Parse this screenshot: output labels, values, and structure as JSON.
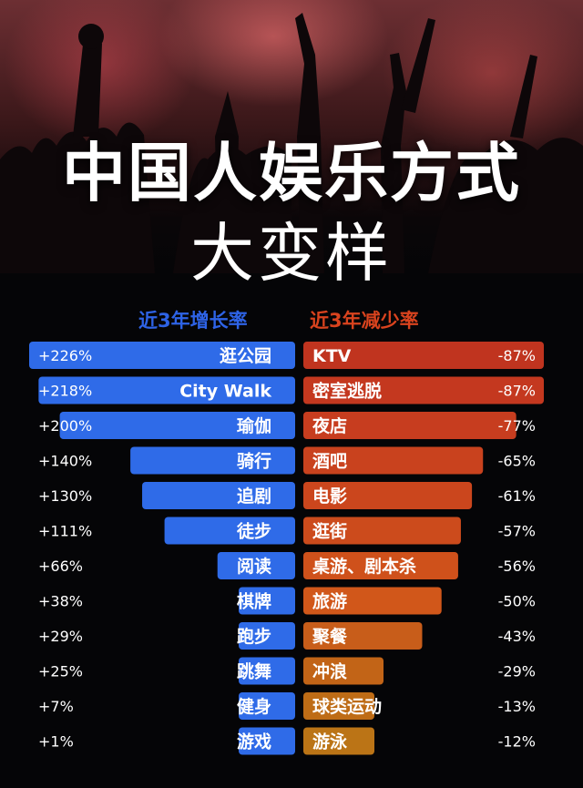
{
  "header": {
    "title": "中国人娱乐方式",
    "subtitle": "大变样"
  },
  "chart_data": {
    "type": "bar",
    "panels": [
      {
        "name": "近3年增长率",
        "color": "#2f6be8",
        "categories": [
          "逛公园",
          "City Walk",
          "瑜伽",
          "骑行",
          "追剧",
          "徒步",
          "阅读",
          "棋牌",
          "跑步",
          "跳舞",
          "健身",
          "游戏"
        ],
        "values": [
          226,
          218,
          200,
          140,
          130,
          111,
          66,
          38,
          29,
          25,
          7,
          1
        ],
        "labels": [
          "+226%",
          "+218%",
          "+200%",
          "+140%",
          "+130%",
          "+111%",
          "+66%",
          "+38%",
          "+29%",
          "+25%",
          "+7%",
          "+1%"
        ]
      },
      {
        "name": "近3年减少率",
        "colors": [
          "#c0341f",
          "#c4381f",
          "#c73d1f",
          "#c9421e",
          "#cb461d",
          "#cc4b1c",
          "#cf511b",
          "#d1571a",
          "#c85d1a",
          "#c26417",
          "#be6c16",
          "#bb7416"
        ],
        "categories": [
          "KTV",
          "密室逃脱",
          "夜店",
          "酒吧",
          "电影",
          "逛街",
          "桌游、剧本杀",
          "旅游",
          "聚餐",
          "冲浪",
          "球类运动",
          "游泳"
        ],
        "values": [
          -87,
          -87,
          -77,
          -65,
          -61,
          -57,
          -56,
          -50,
          -43,
          -29,
          -13,
          -12
        ],
        "labels": [
          "-87%",
          "-87%",
          "-77%",
          "-65%",
          "-61%",
          "-57%",
          "-56%",
          "-50%",
          "-43%",
          "-29%",
          "-13%",
          "-12%"
        ]
      }
    ]
  }
}
